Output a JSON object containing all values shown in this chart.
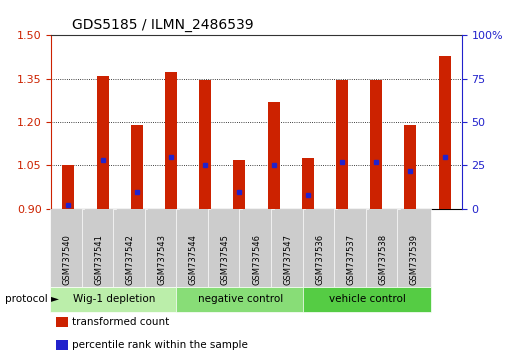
{
  "title": "GDS5185 / ILMN_2486539",
  "samples": [
    "GSM737540",
    "GSM737541",
    "GSM737542",
    "GSM737543",
    "GSM737544",
    "GSM737545",
    "GSM737546",
    "GSM737547",
    "GSM737536",
    "GSM737537",
    "GSM737538",
    "GSM737539"
  ],
  "transformed_count": [
    1.05,
    1.36,
    1.19,
    1.375,
    1.345,
    1.07,
    1.27,
    1.075,
    1.345,
    1.345,
    1.19,
    1.43
  ],
  "percentile_rank": [
    2,
    28,
    10,
    30,
    25,
    10,
    25,
    8,
    27,
    27,
    22,
    30
  ],
  "bar_baseline": 0.9,
  "ylim_left": [
    0.9,
    1.5
  ],
  "ylim_right": [
    0,
    100
  ],
  "yticks_left": [
    0.9,
    1.05,
    1.2,
    1.35,
    1.5
  ],
  "yticks_right": [
    0,
    25,
    50,
    75,
    100
  ],
  "bar_color": "#cc2200",
  "percentile_color": "#2222cc",
  "groups": [
    {
      "label": "Wig-1 depletion",
      "start": 0,
      "end": 4,
      "color": "#bbeeaa"
    },
    {
      "label": "negative control",
      "start": 4,
      "end": 8,
      "color": "#88dd77"
    },
    {
      "label": "vehicle control",
      "start": 8,
      "end": 12,
      "color": "#55cc44"
    }
  ],
  "group_label": "protocol",
  "legend_items": [
    {
      "label": "transformed count",
      "color": "#cc2200"
    },
    {
      "label": "percentile rank within the sample",
      "color": "#2222cc"
    }
  ],
  "left_label_color": "#cc2200",
  "right_label_color": "#2222cc",
  "bar_width": 0.35,
  "sample_box_color": "#cccccc",
  "grid_color": "#888888",
  "spine_color": "#333333"
}
